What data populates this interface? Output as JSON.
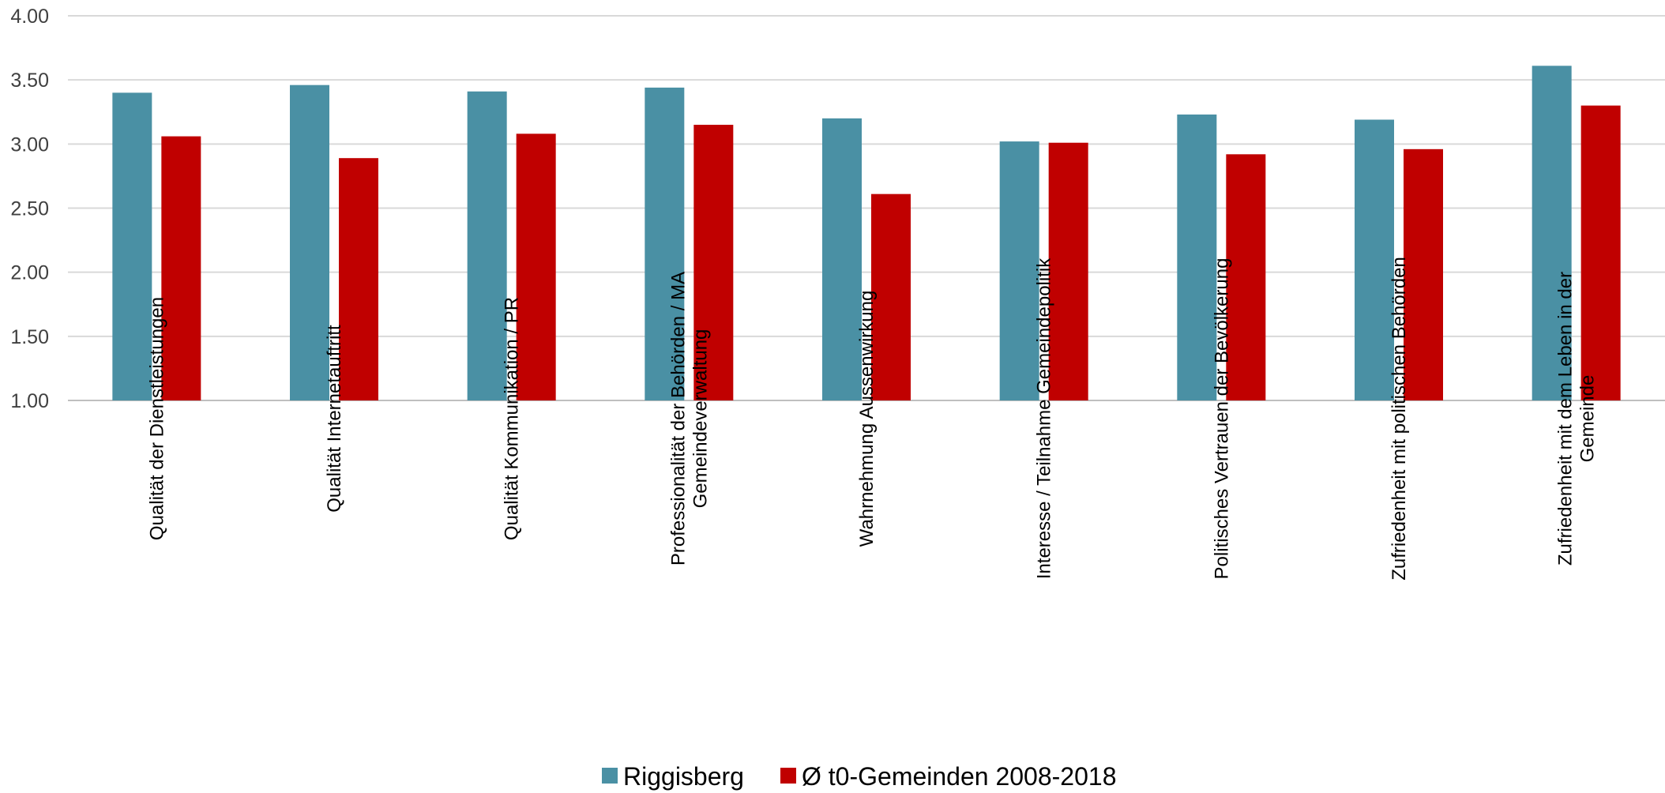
{
  "chart_data": {
    "type": "bar",
    "categories": [
      [
        "Qualität der  Dienstleistungen"
      ],
      [
        "Qualität Internetauftritt"
      ],
      [
        "Qualität Kommunikation / PR"
      ],
      [
        "Professionalität der Behörden / MA",
        "Gemeindeverwaltung"
      ],
      [
        "Wahrnehmung Aussenwirkung"
      ],
      [
        "Interesse / Teilnahme Gemeindepolitik"
      ],
      [
        "Politisches Vertrauen der Bevölkerung"
      ],
      [
        "Zufriedenheit mit politischen Behörden"
      ],
      [
        "Zufriedenheit mit dem Leben in der",
        "Gemeinde"
      ]
    ],
    "series": [
      {
        "name": "Riggisberg",
        "color": "#4a90a4",
        "values": [
          3.4,
          3.46,
          3.41,
          3.44,
          3.2,
          3.02,
          3.23,
          3.19,
          3.61
        ]
      },
      {
        "name": "Ø t0-Gemeinden 2008-2018",
        "color": "#c00000",
        "values": [
          3.06,
          2.89,
          3.08,
          3.15,
          2.61,
          3.01,
          2.92,
          2.96,
          3.3
        ]
      }
    ],
    "ylim": [
      1.0,
      4.0
    ],
    "yticks": [
      "1.00",
      "1.50",
      "2.00",
      "2.50",
      "3.00",
      "3.50",
      "4.00"
    ],
    "grid": true,
    "legend_position": "bottom"
  }
}
